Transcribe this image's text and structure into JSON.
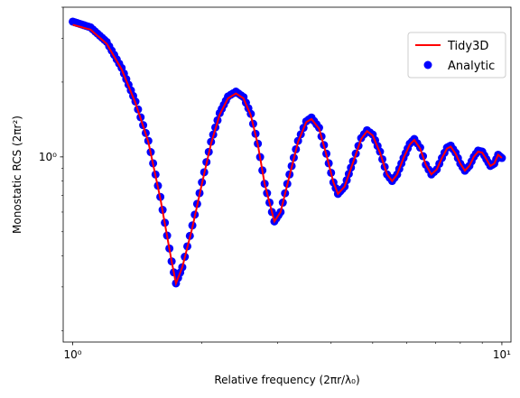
{
  "chart_data": {
    "type": "line",
    "xscale": "log",
    "yscale": "log",
    "xlim": [
      0.95,
      10.5
    ],
    "ylim": [
      0.18,
      4.0
    ],
    "xlabel": "Relative frequency (2πr/λ₀)",
    "ylabel": "Monostatic RCS (2πr²)",
    "x_ticks": [
      {
        "value": 1,
        "label": "10⁰"
      },
      {
        "value": 10,
        "label": "10¹"
      }
    ],
    "y_ticks": [
      {
        "value": 1,
        "label": "10⁰"
      }
    ],
    "legend_position": "top-right",
    "grid": false,
    "series": [
      {
        "name": "Tidy3D",
        "kind": "line",
        "color": "#ff0000",
        "points": [
          [
            1.0,
            3.4
          ],
          [
            1.1,
            3.25
          ],
          [
            1.2,
            2.85
          ],
          [
            1.3,
            2.25
          ],
          [
            1.4,
            1.65
          ],
          [
            1.5,
            1.15
          ],
          [
            1.6,
            0.68
          ],
          [
            1.7,
            0.38
          ],
          [
            1.74,
            0.31
          ],
          [
            1.8,
            0.36
          ],
          [
            1.9,
            0.52
          ],
          [
            2.0,
            0.78
          ],
          [
            2.1,
            1.13
          ],
          [
            2.2,
            1.48
          ],
          [
            2.3,
            1.72
          ],
          [
            2.4,
            1.8
          ],
          [
            2.5,
            1.72
          ],
          [
            2.6,
            1.47
          ],
          [
            2.7,
            1.12
          ],
          [
            2.8,
            0.78
          ],
          [
            2.95,
            0.55
          ],
          [
            3.05,
            0.6
          ],
          [
            3.2,
            0.84
          ],
          [
            3.35,
            1.15
          ],
          [
            3.5,
            1.38
          ],
          [
            3.6,
            1.42
          ],
          [
            3.75,
            1.3
          ],
          [
            3.9,
            1.02
          ],
          [
            4.05,
            0.79
          ],
          [
            4.15,
            0.71
          ],
          [
            4.3,
            0.76
          ],
          [
            4.5,
            0.95
          ],
          [
            4.7,
            1.18
          ],
          [
            4.85,
            1.27
          ],
          [
            5.0,
            1.22
          ],
          [
            5.2,
            1.04
          ],
          [
            5.4,
            0.85
          ],
          [
            5.55,
            0.8
          ],
          [
            5.7,
            0.85
          ],
          [
            5.9,
            0.99
          ],
          [
            6.1,
            1.12
          ],
          [
            6.25,
            1.17
          ],
          [
            6.45,
            1.08
          ],
          [
            6.65,
            0.93
          ],
          [
            6.85,
            0.85
          ],
          [
            7.05,
            0.89
          ],
          [
            7.25,
            0.99
          ],
          [
            7.45,
            1.08
          ],
          [
            7.6,
            1.1
          ],
          [
            7.8,
            1.03
          ],
          [
            8.0,
            0.94
          ],
          [
            8.2,
            0.88
          ],
          [
            8.4,
            0.92
          ],
          [
            8.6,
            1.0
          ],
          [
            8.8,
            1.05
          ],
          [
            9.0,
            1.04
          ],
          [
            9.2,
            0.98
          ],
          [
            9.4,
            0.92
          ],
          [
            9.6,
            0.94
          ],
          [
            9.8,
            1.02
          ],
          [
            10.0,
            0.99
          ]
        ]
      },
      {
        "name": "Analytic",
        "kind": "scatter",
        "color": "#0000ff",
        "points": [
          [
            1.0,
            3.5
          ],
          [
            1.1,
            3.32
          ],
          [
            1.2,
            2.9
          ],
          [
            1.3,
            2.28
          ],
          [
            1.4,
            1.67
          ],
          [
            1.5,
            1.16
          ],
          [
            1.6,
            0.69
          ],
          [
            1.7,
            0.38
          ],
          [
            1.74,
            0.31
          ],
          [
            1.8,
            0.36
          ],
          [
            1.9,
            0.53
          ],
          [
            2.0,
            0.79
          ],
          [
            2.1,
            1.15
          ],
          [
            2.2,
            1.5
          ],
          [
            2.3,
            1.75
          ],
          [
            2.4,
            1.83
          ],
          [
            2.5,
            1.74
          ],
          [
            2.6,
            1.49
          ],
          [
            2.7,
            1.13
          ],
          [
            2.8,
            0.78
          ],
          [
            2.95,
            0.55
          ],
          [
            3.05,
            0.6
          ],
          [
            3.2,
            0.85
          ],
          [
            3.35,
            1.16
          ],
          [
            3.5,
            1.39
          ],
          [
            3.6,
            1.44
          ],
          [
            3.75,
            1.31
          ],
          [
            3.9,
            1.03
          ],
          [
            4.05,
            0.79
          ],
          [
            4.15,
            0.71
          ],
          [
            4.3,
            0.76
          ],
          [
            4.5,
            0.96
          ],
          [
            4.7,
            1.19
          ],
          [
            4.85,
            1.28
          ],
          [
            5.0,
            1.23
          ],
          [
            5.2,
            1.05
          ],
          [
            5.4,
            0.85
          ],
          [
            5.55,
            0.8
          ],
          [
            5.7,
            0.85
          ],
          [
            5.9,
            0.99
          ],
          [
            6.1,
            1.13
          ],
          [
            6.25,
            1.18
          ],
          [
            6.45,
            1.09
          ],
          [
            6.65,
            0.93
          ],
          [
            6.85,
            0.85
          ],
          [
            7.05,
            0.89
          ],
          [
            7.25,
            0.99
          ],
          [
            7.45,
            1.09
          ],
          [
            7.6,
            1.11
          ],
          [
            7.8,
            1.04
          ],
          [
            8.0,
            0.94
          ],
          [
            8.2,
            0.88
          ],
          [
            8.4,
            0.92
          ],
          [
            8.6,
            1.0
          ],
          [
            8.8,
            1.06
          ],
          [
            9.0,
            1.05
          ],
          [
            9.2,
            0.98
          ],
          [
            9.4,
            0.92
          ],
          [
            9.6,
            0.94
          ],
          [
            9.8,
            1.02
          ],
          [
            10.0,
            0.99
          ]
        ]
      }
    ]
  }
}
